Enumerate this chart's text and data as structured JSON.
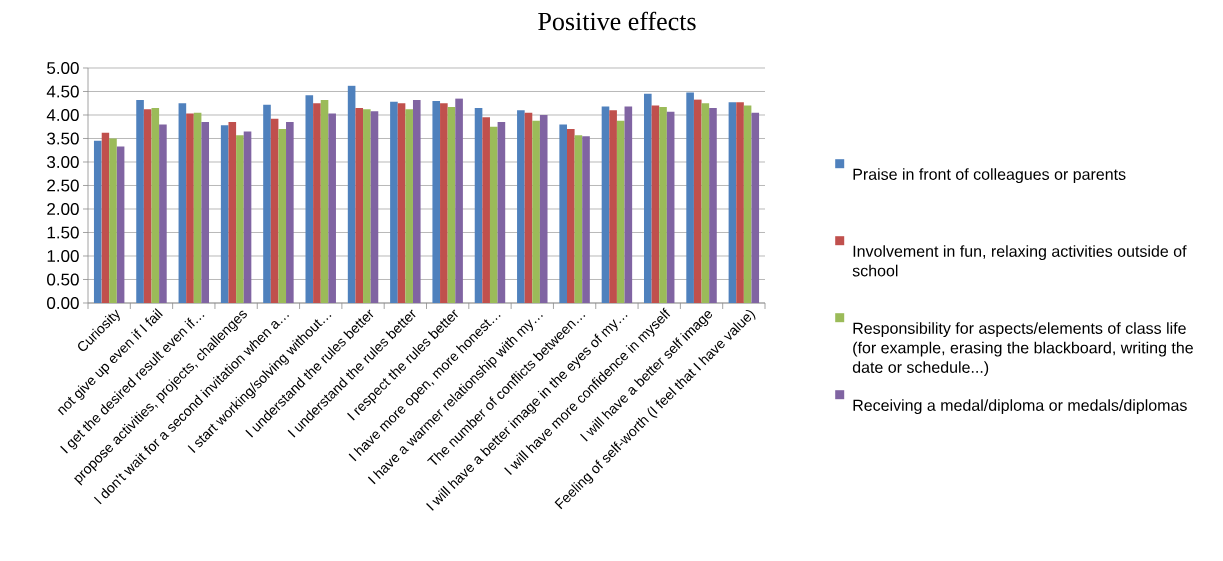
{
  "chart_data": {
    "type": "bar",
    "title": "Positive effects",
    "categories": [
      "Curiosity",
      "not give up even if I fail",
      "I get the desired result even if…",
      "propose activities, projects, challenges",
      "I don't wait for a second invitation when a…",
      "I start working/solving without…",
      "I understand the rules better",
      "I understand the rules better",
      "I respect the rules better",
      "I have more open, more honest…",
      "I have a warmer relationship with my…",
      "The number of conflicts between…",
      "I will have a better image in the eyes of my…",
      "I will have more confidence in myself",
      "I will have a better self image",
      "Feeling of self-worth (I feel that I have value)"
    ],
    "series": [
      {
        "name": "Praise in front of colleagues or parents",
        "color": "#4f81bd",
        "values": [
          3.45,
          4.32,
          4.25,
          3.78,
          4.22,
          4.42,
          4.62,
          4.28,
          4.3,
          4.15,
          4.1,
          3.8,
          4.18,
          4.45,
          4.48,
          4.27
        ]
      },
      {
        "name": "Involvement in fun, relaxing activities outside of school",
        "color": "#c0504d",
        "values": [
          3.62,
          4.12,
          4.03,
          3.85,
          3.92,
          4.25,
          4.15,
          4.25,
          4.25,
          3.95,
          4.05,
          3.7,
          4.1,
          4.2,
          4.33,
          4.27
        ]
      },
      {
        "name": "Responsibility for aspects/elements of class life (for example, erasing the blackboard, writing the date or schedule...)",
        "color": "#9bbb59",
        "values": [
          3.5,
          4.15,
          4.05,
          3.57,
          3.7,
          4.32,
          4.12,
          4.12,
          4.17,
          3.75,
          3.88,
          3.57,
          3.88,
          4.17,
          4.25,
          4.2
        ]
      },
      {
        "name": "Receiving a medal/diploma or medals/diplomas",
        "color": "#8064a2",
        "values": [
          3.33,
          3.8,
          3.85,
          3.65,
          3.85,
          4.03,
          4.08,
          4.32,
          4.35,
          3.85,
          4.0,
          3.55,
          4.18,
          4.07,
          4.15,
          4.05
        ]
      }
    ],
    "ylim": [
      0,
      5
    ],
    "yticks": [
      {
        "value": 0,
        "label": "0.00"
      },
      {
        "value": 0.5,
        "label": "0.50"
      },
      {
        "value": 1,
        "label": "1.00"
      },
      {
        "value": 1.5,
        "label": "1.50"
      },
      {
        "value": 2,
        "label": "2.00"
      },
      {
        "value": 2.5,
        "label": "2.50"
      },
      {
        "value": 3,
        "label": "3.00"
      },
      {
        "value": 3.5,
        "label": "3.50"
      },
      {
        "value": 4,
        "label": "4.00"
      },
      {
        "value": 4.5,
        "label": "4.50"
      },
      {
        "value": 5,
        "label": "5.00"
      }
    ],
    "grid": "y",
    "legend": "right"
  }
}
